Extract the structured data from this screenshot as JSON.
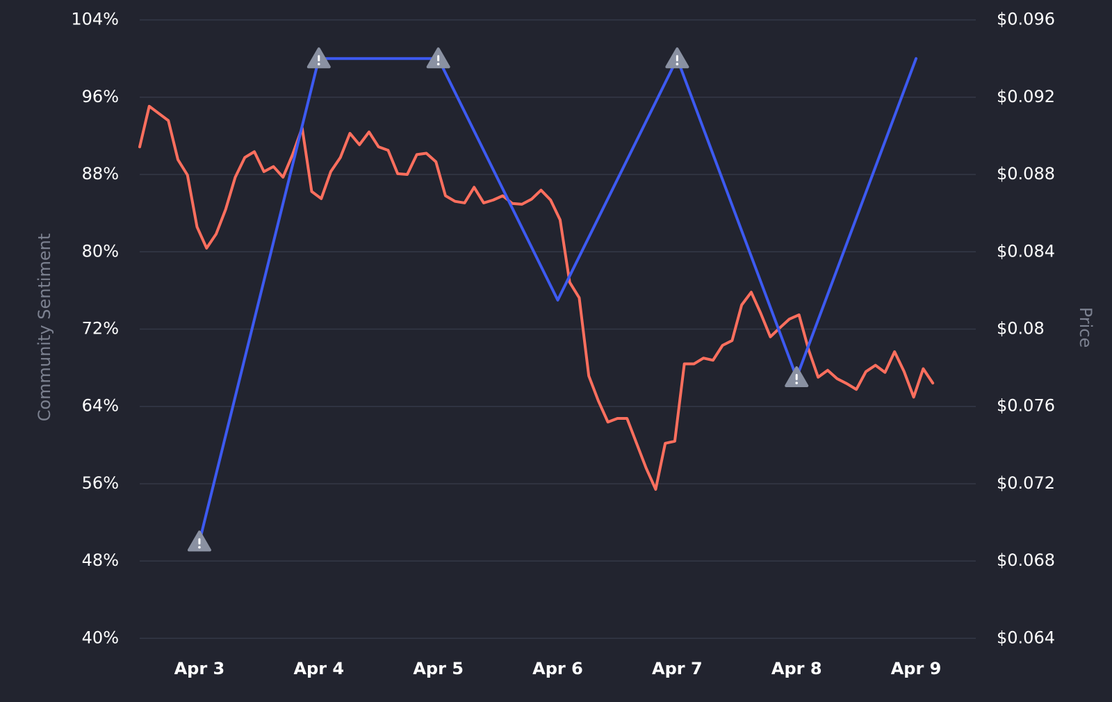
{
  "chart_data": {
    "type": "line",
    "ylabel": "Community Sentiment",
    "y2label": "Price",
    "xlim": [
      -0.5,
      6.5
    ],
    "xticks": [
      {
        "value": 0,
        "label": "Apr 3"
      },
      {
        "value": 1,
        "label": "Apr 4"
      },
      {
        "value": 2,
        "label": "Apr 5"
      },
      {
        "value": 3,
        "label": "Apr 6"
      },
      {
        "value": 4,
        "label": "Apr 7"
      },
      {
        "value": 5,
        "label": "Apr 8"
      },
      {
        "value": 6,
        "label": "Apr 9"
      }
    ],
    "highlight_xtick": 6,
    "highlight_color": "#3d5af1",
    "ylim": [
      40,
      104
    ],
    "yticks": [
      {
        "value": 40,
        "label": "40%"
      },
      {
        "value": 48,
        "label": "48%"
      },
      {
        "value": 56,
        "label": "56%"
      },
      {
        "value": 64,
        "label": "64%"
      },
      {
        "value": 72,
        "label": "72%"
      },
      {
        "value": 80,
        "label": "80%"
      },
      {
        "value": 88,
        "label": "88%"
      },
      {
        "value": 96,
        "label": "96%"
      },
      {
        "value": 104,
        "label": "104%"
      }
    ],
    "y2lim": [
      0.064,
      0.096
    ],
    "y2ticks": [
      {
        "value": 0.064,
        "label": "$0.064"
      },
      {
        "value": 0.068,
        "label": "$0.068"
      },
      {
        "value": 0.072,
        "label": "$0.072"
      },
      {
        "value": 0.076,
        "label": "$0.076"
      },
      {
        "value": 0.08,
        "label": "$0.08"
      },
      {
        "value": 0.084,
        "label": "$0.084"
      },
      {
        "value": 0.088,
        "label": "$0.088"
      },
      {
        "value": 0.092,
        "label": "$0.092"
      },
      {
        "value": 0.096,
        "label": "$0.096"
      }
    ],
    "grid": true,
    "series": [
      {
        "name": "Price",
        "color": "#ff6f5e",
        "axis": "y2",
        "x": [
          -0.5,
          -0.42,
          -0.34,
          -0.26,
          -0.18,
          -0.1,
          -0.02,
          0.06,
          0.14,
          0.22,
          0.3,
          0.38,
          0.46,
          0.54,
          0.62,
          0.7,
          0.78,
          0.86,
          0.94,
          1.02,
          1.1,
          1.18,
          1.26,
          1.34,
          1.42,
          1.5,
          1.58,
          1.66,
          1.74,
          1.82,
          1.9,
          1.98,
          2.06,
          2.14,
          2.22,
          2.3,
          2.38,
          2.46,
          2.54,
          2.62,
          2.7,
          2.78,
          2.86,
          2.94,
          3.02,
          3.1,
          3.18,
          3.26,
          3.34,
          3.42,
          3.5,
          3.58,
          3.66,
          3.74,
          3.82,
          3.9,
          3.98,
          4.06,
          4.14,
          4.22,
          4.3,
          4.38,
          4.46,
          4.54,
          4.62,
          4.7,
          4.78,
          4.86,
          4.94,
          5.02,
          5.1,
          5.18,
          5.26,
          5.34,
          5.42,
          5.5,
          5.58,
          5.66,
          5.74,
          5.82,
          5.9,
          5.98,
          6.06,
          6.14
        ],
        "values": [
          0.08943,
          0.09153,
          0.09116,
          0.09079,
          0.08877,
          0.08797,
          0.08529,
          0.08419,
          0.08492,
          0.0862,
          0.08786,
          0.08888,
          0.08918,
          0.08815,
          0.08841,
          0.08786,
          0.08903,
          0.09042,
          0.08712,
          0.08675,
          0.08815,
          0.08888,
          0.09013,
          0.08954,
          0.0902,
          0.08943,
          0.08925,
          0.08804,
          0.088,
          0.08903,
          0.0891,
          0.08866,
          0.0869,
          0.08661,
          0.08653,
          0.08734,
          0.08653,
          0.08668,
          0.0869,
          0.0865,
          0.08646,
          0.08672,
          0.08719,
          0.08668,
          0.08565,
          0.08242,
          0.08162,
          0.07758,
          0.07629,
          0.07519,
          0.07538,
          0.07538,
          0.07409,
          0.07281,
          0.07171,
          0.07409,
          0.0742,
          0.0782,
          0.0782,
          0.0785,
          0.07839,
          0.07916,
          0.07941,
          0.08125,
          0.08191,
          0.08081,
          0.0796,
          0.08007,
          0.08052,
          0.08074,
          0.07894,
          0.07751,
          0.07787,
          0.07743,
          0.07718,
          0.07688,
          0.0778,
          0.07813,
          0.07776,
          0.07883,
          0.0778,
          0.07648,
          0.07795,
          0.07721
        ]
      },
      {
        "name": "Community Sentiment",
        "color": "#3d5af1",
        "x": [
          0,
          1,
          2,
          3,
          4,
          5,
          6
        ],
        "values": [
          50,
          100,
          100,
          75,
          100,
          67,
          100
        ],
        "markers": [
          true,
          true,
          true,
          false,
          true,
          true,
          false
        ]
      }
    ]
  }
}
